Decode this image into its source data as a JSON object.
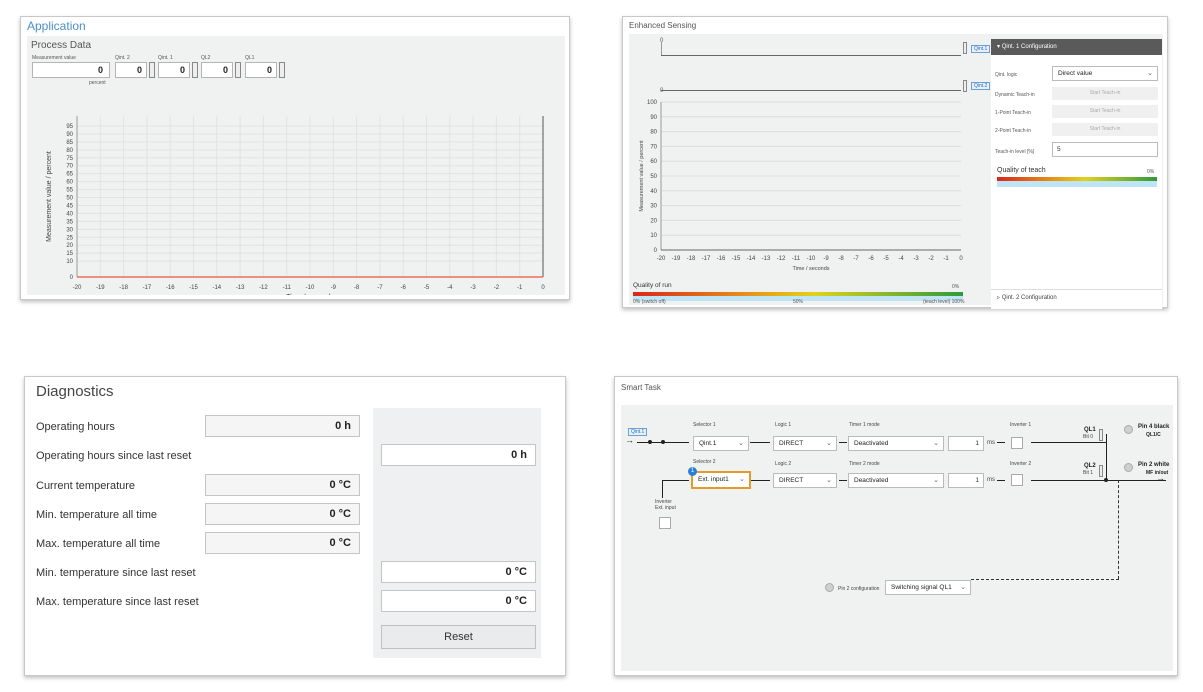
{
  "application": {
    "title": "Application",
    "process_title": "Process Data",
    "fields": [
      {
        "label": "Measurement value",
        "value": "0",
        "unit": "percent"
      },
      {
        "label": "Qint. 2",
        "value": "0"
      },
      {
        "label": "Qint. 1",
        "value": "0"
      },
      {
        "label": "QL2",
        "value": "0"
      },
      {
        "label": "QL1",
        "value": "0"
      }
    ],
    "chart": {
      "ylabel": "Measurement value / percent",
      "xlabel": "Time / seconds",
      "yticks": [
        "95",
        "90",
        "85",
        "80",
        "75",
        "70",
        "65",
        "60",
        "55",
        "50",
        "45",
        "40",
        "35",
        "30",
        "25",
        "20",
        "15",
        "10",
        "0"
      ],
      "xticks": [
        "-20",
        "-19",
        "-18",
        "-17",
        "-16",
        "-15",
        "-14",
        "-13",
        "-12",
        "-11",
        "-10",
        "-9",
        "-8",
        "-7",
        "-6",
        "-5",
        "-4",
        "-3",
        "-2",
        "-1",
        "0"
      ]
    }
  },
  "enhanced": {
    "title": "Enhanced Sensing",
    "top_rows": [
      {
        "value": "0",
        "tag": "Qint.1"
      },
      {
        "value": "0",
        "tag": "Qint.2"
      }
    ],
    "chart": {
      "ylabel": "Measurement value / percent",
      "xlabel": "Time / seconds",
      "yticks": [
        "100",
        "90",
        "80",
        "70",
        "60",
        "50",
        "40",
        "30",
        "20",
        "10",
        "0"
      ],
      "xticks": [
        "-20",
        "-19",
        "-18",
        "-17",
        "-16",
        "-15",
        "-14",
        "-13",
        "-12",
        "-11",
        "-10",
        "-9",
        "-8",
        "-7",
        "-6",
        "-5",
        "-4",
        "-3",
        "-2",
        "-1",
        "0"
      ]
    },
    "quality_run": {
      "label": "Quality of run",
      "value": "0%",
      "left": "0% (switch off)",
      "mid": "50%",
      "right": "(teach level) 100%"
    },
    "config": {
      "header": "Qint. 1 Configuration",
      "logic_label": "Qint. logic",
      "logic_value": "Direct value",
      "dynamic_label": "Dynamic Teach-in",
      "one_point_label": "1-Point Teach-in",
      "two_point_label": "2-Point Teach-in",
      "teach_button": "Start Teach-in",
      "teach_level_label": "Teach-in level [%]",
      "teach_level_value": "5",
      "quality_label": "Quality of teach",
      "quality_value": "0%",
      "footer": "Qint. 2 Configuration"
    }
  },
  "diagnostics": {
    "title": "Diagnostics",
    "rows": [
      {
        "label": "Operating hours",
        "value": "0 h"
      },
      {
        "label": "Operating hours since last reset",
        "value": "0 h"
      },
      {
        "label": "Current temperature",
        "value": "0 °C"
      },
      {
        "label": "Min. temperature all time",
        "value": "0 °C"
      },
      {
        "label": "Max. temperature all time",
        "value": "0 °C"
      },
      {
        "label": "Min. temperature since last reset",
        "value": "0 °C"
      },
      {
        "label": "Max. temperature since last reset",
        "value": "0 °C"
      }
    ],
    "reset_label": "Reset"
  },
  "smart": {
    "title": "Smart Task",
    "input_tag": "Qint.1",
    "selector1_label": "Selector 1",
    "selector1_value": "Qint.1",
    "selector2_label": "Selector 2",
    "selector2_value": "Ext. input1",
    "selector2_badge": "1",
    "logic1_label": "Logic 1",
    "logic1_value": "DIRECT",
    "logic2_label": "Logic 2",
    "logic2_value": "DIRECT",
    "timer1_label": "Timer 1 mode",
    "timer1_value": "Deactivated",
    "timer1_num": "1",
    "timer1_unit": "ms",
    "timer2_label": "Timer 2 mode",
    "timer2_value": "Deactivated",
    "timer2_num": "1",
    "timer2_unit": "ms",
    "inv1_label": "Inverter 1",
    "inv2_label": "Inverter 2",
    "inv_ext_label": "Inverter\nExt. input",
    "ql1_label": "QL1",
    "ql1_bit": "Bit 0",
    "ql2_label": "QL2",
    "ql2_bit": "Bit 1",
    "pin4_label": "Pin 4 black",
    "pin4_sub": "QL1/C",
    "pin2_label": "Pin 2 white",
    "pin2_sub": "MF in/out",
    "pin2cfg_label": "Pin 2 configuration",
    "pin2cfg_value": "Switching signal QL1"
  }
}
